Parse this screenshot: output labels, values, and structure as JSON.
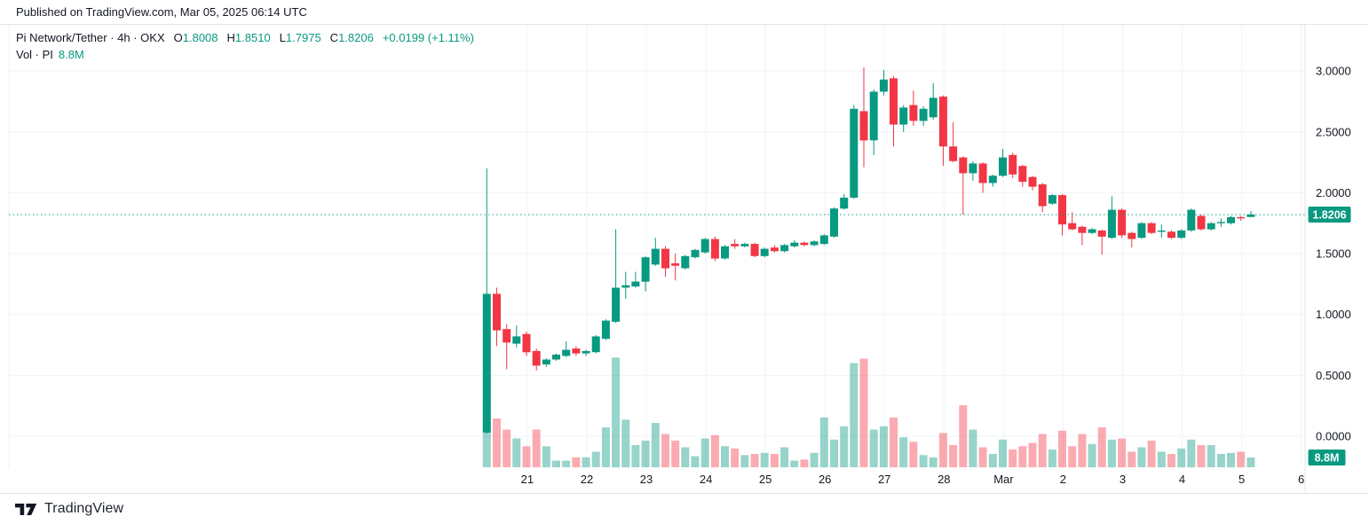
{
  "top_bar": {
    "published_text": "Published on TradingView.com, Mar 05, 2025 06:14 UTC"
  },
  "legend": {
    "symbol_title": "Pi Network/Tether · 4h · OKX",
    "open_label": "O",
    "open": "1.8008",
    "high_label": "H",
    "high": "1.8510",
    "low_label": "L",
    "low": "1.7975",
    "close_label": "C",
    "close": "1.8206",
    "change": "+0.0199 (+1.11%)",
    "volume_label": "Vol · PI",
    "volume_value": "8.8M"
  },
  "axes": {
    "price_ticks": [
      "3.0000",
      "2.5000",
      "2.0000",
      "1.5000",
      "1.0000",
      "0.5000",
      "0.0000"
    ],
    "time_ticks": [
      "21",
      "22",
      "23",
      "24",
      "25",
      "26",
      "27",
      "28",
      "Mar",
      "2",
      "3",
      "4",
      "5",
      "6"
    ],
    "price_badge": "1.8206",
    "volume_badge": "8.8M"
  },
  "footer": {
    "brand": "TradingView"
  },
  "colors": {
    "up": "#089981",
    "down": "#f23645",
    "up_volume": "rgba(8,153,129,0.42)",
    "down_volume": "rgba(242,54,69,0.42)",
    "grid": "#f0f3fa",
    "axis_border": "#e0e3eb",
    "axis_text": "#131722",
    "badge_bg": "#089981",
    "badge_text": "#ffffff",
    "last_price_line": "#089981"
  },
  "chart_data": {
    "type": "candlestick",
    "title": "Pi Network/Tether · 4h · OKX",
    "interval": "4h",
    "exchange": "OKX",
    "legend_ohlc": {
      "o": 1.8008,
      "h": 1.851,
      "l": 1.7975,
      "c": 1.8206,
      "change": 0.0199,
      "change_pct": 1.11
    },
    "last_price": 1.8206,
    "last_volume_m": 8.8,
    "price_axis_ticks": [
      3.0,
      2.5,
      2.0,
      1.5,
      1.0,
      0.5,
      0.0
    ],
    "time_axis_labels": [
      "21",
      "22",
      "23",
      "24",
      "25",
      "26",
      "27",
      "28",
      "Mar",
      "2",
      "3",
      "4",
      "5",
      "6"
    ],
    "grid": true,
    "volume_overlay": true,
    "columns": [
      "time",
      "open",
      "high",
      "low",
      "close",
      "volume_millions"
    ],
    "candles": [
      [
        "02-20 08:00",
        0.03,
        2.2,
        0.02,
        1.17,
        58
      ],
      [
        "02-20 12:00",
        1.17,
        1.22,
        0.74,
        0.87,
        44
      ],
      [
        "02-20 16:00",
        0.88,
        0.92,
        0.55,
        0.77,
        34
      ],
      [
        "02-20 20:00",
        0.76,
        0.91,
        0.73,
        0.82,
        26
      ],
      [
        "02-21 00:00",
        0.84,
        0.86,
        0.66,
        0.69,
        19
      ],
      [
        "02-21 04:00",
        0.7,
        0.72,
        0.54,
        0.58,
        34
      ],
      [
        "02-21 08:00",
        0.59,
        0.64,
        0.57,
        0.63,
        19
      ],
      [
        "02-21 12:00",
        0.63,
        0.68,
        0.62,
        0.67,
        6
      ],
      [
        "02-21 16:00",
        0.66,
        0.78,
        0.65,
        0.71,
        6
      ],
      [
        "02-21 20:00",
        0.72,
        0.74,
        0.66,
        0.68,
        9
      ],
      [
        "02-22 00:00",
        0.68,
        0.71,
        0.66,
        0.7,
        9
      ],
      [
        "02-22 04:00",
        0.69,
        0.83,
        0.68,
        0.82,
        14
      ],
      [
        "02-22 08:00",
        0.8,
        0.96,
        0.79,
        0.95,
        36
      ],
      [
        "02-22 12:00",
        0.94,
        1.7,
        0.93,
        1.22,
        99
      ],
      [
        "02-22 16:00",
        1.22,
        1.35,
        1.13,
        1.24,
        43
      ],
      [
        "02-22 20:00",
        1.23,
        1.35,
        1.22,
        1.27,
        20
      ],
      [
        "02-23 00:00",
        1.27,
        1.48,
        1.19,
        1.47,
        24
      ],
      [
        "02-23 04:00",
        1.41,
        1.63,
        1.4,
        1.54,
        40
      ],
      [
        "02-23 08:00",
        1.54,
        1.56,
        1.31,
        1.38,
        30
      ],
      [
        "02-23 12:00",
        1.42,
        1.5,
        1.28,
        1.4,
        24
      ],
      [
        "02-23 16:00",
        1.38,
        1.49,
        1.37,
        1.48,
        18
      ],
      [
        "02-23 20:00",
        1.47,
        1.54,
        1.46,
        1.53,
        10
      ],
      [
        "02-24 00:00",
        1.51,
        1.63,
        1.5,
        1.62,
        26
      ],
      [
        "02-24 04:00",
        1.62,
        1.64,
        1.44,
        1.46,
        29
      ],
      [
        "02-24 08:00",
        1.46,
        1.57,
        1.45,
        1.56,
        19
      ],
      [
        "02-24 12:00",
        1.58,
        1.62,
        1.54,
        1.56,
        17
      ],
      [
        "02-24 16:00",
        1.56,
        1.59,
        1.55,
        1.58,
        11
      ],
      [
        "02-24 20:00",
        1.58,
        1.59,
        1.47,
        1.48,
        12
      ],
      [
        "02-25 00:00",
        1.48,
        1.55,
        1.47,
        1.54,
        13
      ],
      [
        "02-25 04:00",
        1.55,
        1.57,
        1.51,
        1.52,
        12
      ],
      [
        "02-25 08:00",
        1.52,
        1.58,
        1.51,
        1.57,
        18
      ],
      [
        "02-25 12:00",
        1.56,
        1.61,
        1.55,
        1.59,
        6
      ],
      [
        "02-25 16:00",
        1.59,
        1.6,
        1.56,
        1.57,
        7
      ],
      [
        "02-25 20:00",
        1.57,
        1.61,
        1.56,
        1.6,
        13
      ],
      [
        "02-26 00:00",
        1.58,
        1.66,
        1.57,
        1.65,
        45
      ],
      [
        "02-26 04:00",
        1.64,
        1.88,
        1.63,
        1.87,
        25
      ],
      [
        "02-26 08:00",
        1.87,
        1.99,
        1.86,
        1.96,
        37
      ],
      [
        "02-26 12:00",
        1.96,
        2.72,
        1.95,
        2.69,
        94
      ],
      [
        "02-26 16:00",
        2.67,
        3.03,
        2.21,
        2.43,
        98
      ],
      [
        "02-26 20:00",
        2.43,
        2.85,
        2.31,
        2.83,
        34
      ],
      [
        "02-27 00:00",
        2.83,
        3.01,
        2.8,
        2.93,
        37
      ],
      [
        "02-27 04:00",
        2.94,
        2.96,
        2.38,
        2.56,
        45
      ],
      [
        "02-27 08:00",
        2.56,
        2.72,
        2.5,
        2.7,
        27
      ],
      [
        "02-27 12:00",
        2.72,
        2.84,
        2.55,
        2.59,
        23
      ],
      [
        "02-27 16:00",
        2.59,
        2.71,
        2.55,
        2.69,
        11
      ],
      [
        "02-27 20:00",
        2.62,
        2.9,
        2.6,
        2.78,
        9
      ],
      [
        "02-28 00:00",
        2.79,
        2.8,
        2.22,
        2.38,
        31
      ],
      [
        "02-28 04:00",
        2.38,
        2.58,
        2.25,
        2.26,
        20
      ],
      [
        "02-28 08:00",
        2.29,
        2.3,
        1.82,
        2.16,
        56
      ],
      [
        "02-28 12:00",
        2.16,
        2.26,
        2.1,
        2.24,
        34
      ],
      [
        "02-28 16:00",
        2.24,
        2.25,
        2.0,
        2.08,
        18
      ],
      [
        "02-28 20:00",
        2.08,
        2.15,
        2.05,
        2.14,
        12
      ],
      [
        "03-01 00:00",
        2.14,
        2.36,
        2.13,
        2.29,
        25
      ],
      [
        "03-01 04:00",
        2.31,
        2.33,
        2.12,
        2.15,
        16
      ],
      [
        "03-01 08:00",
        2.22,
        2.23,
        2.05,
        2.09,
        19
      ],
      [
        "03-01 12:00",
        2.13,
        2.14,
        2.02,
        2.05,
        22
      ],
      [
        "03-01 16:00",
        2.07,
        2.08,
        1.84,
        1.89,
        30
      ],
      [
        "03-01 20:00",
        1.91,
        1.99,
        1.9,
        1.98,
        16
      ],
      [
        "03-02 00:00",
        1.98,
        1.99,
        1.65,
        1.74,
        33
      ],
      [
        "03-02 04:00",
        1.75,
        1.84,
        1.69,
        1.7,
        19
      ],
      [
        "03-02 08:00",
        1.72,
        1.73,
        1.57,
        1.67,
        30
      ],
      [
        "03-02 12:00",
        1.67,
        1.71,
        1.66,
        1.7,
        21
      ],
      [
        "03-02 16:00",
        1.69,
        1.7,
        1.49,
        1.64,
        36
      ],
      [
        "03-02 20:00",
        1.63,
        1.97,
        1.62,
        1.86,
        25
      ],
      [
        "03-03 00:00",
        1.86,
        1.87,
        1.63,
        1.65,
        26
      ],
      [
        "03-03 04:00",
        1.67,
        1.68,
        1.55,
        1.62,
        14
      ],
      [
        "03-03 08:00",
        1.63,
        1.76,
        1.62,
        1.75,
        18
      ],
      [
        "03-03 12:00",
        1.75,
        1.76,
        1.66,
        1.67,
        24
      ],
      [
        "03-03 16:00",
        1.68,
        1.74,
        1.63,
        1.69,
        14
      ],
      [
        "03-03 20:00",
        1.68,
        1.69,
        1.62,
        1.63,
        12
      ],
      [
        "03-04 00:00",
        1.63,
        1.7,
        1.62,
        1.69,
        17
      ],
      [
        "03-04 04:00",
        1.69,
        1.87,
        1.68,
        1.86,
        25
      ],
      [
        "03-04 08:00",
        1.81,
        1.82,
        1.69,
        1.7,
        20
      ],
      [
        "03-04 12:00",
        1.7,
        1.76,
        1.69,
        1.75,
        20
      ],
      [
        "03-04 16:00",
        1.75,
        1.79,
        1.72,
        1.76,
        12
      ],
      [
        "03-04 20:00",
        1.75,
        1.81,
        1.74,
        1.8,
        13
      ],
      [
        "03-05 00:00",
        1.8,
        1.81,
        1.77,
        1.79,
        14
      ],
      [
        "03-05 04:00",
        1.8008,
        1.851,
        1.7975,
        1.8206,
        8.8
      ]
    ]
  }
}
